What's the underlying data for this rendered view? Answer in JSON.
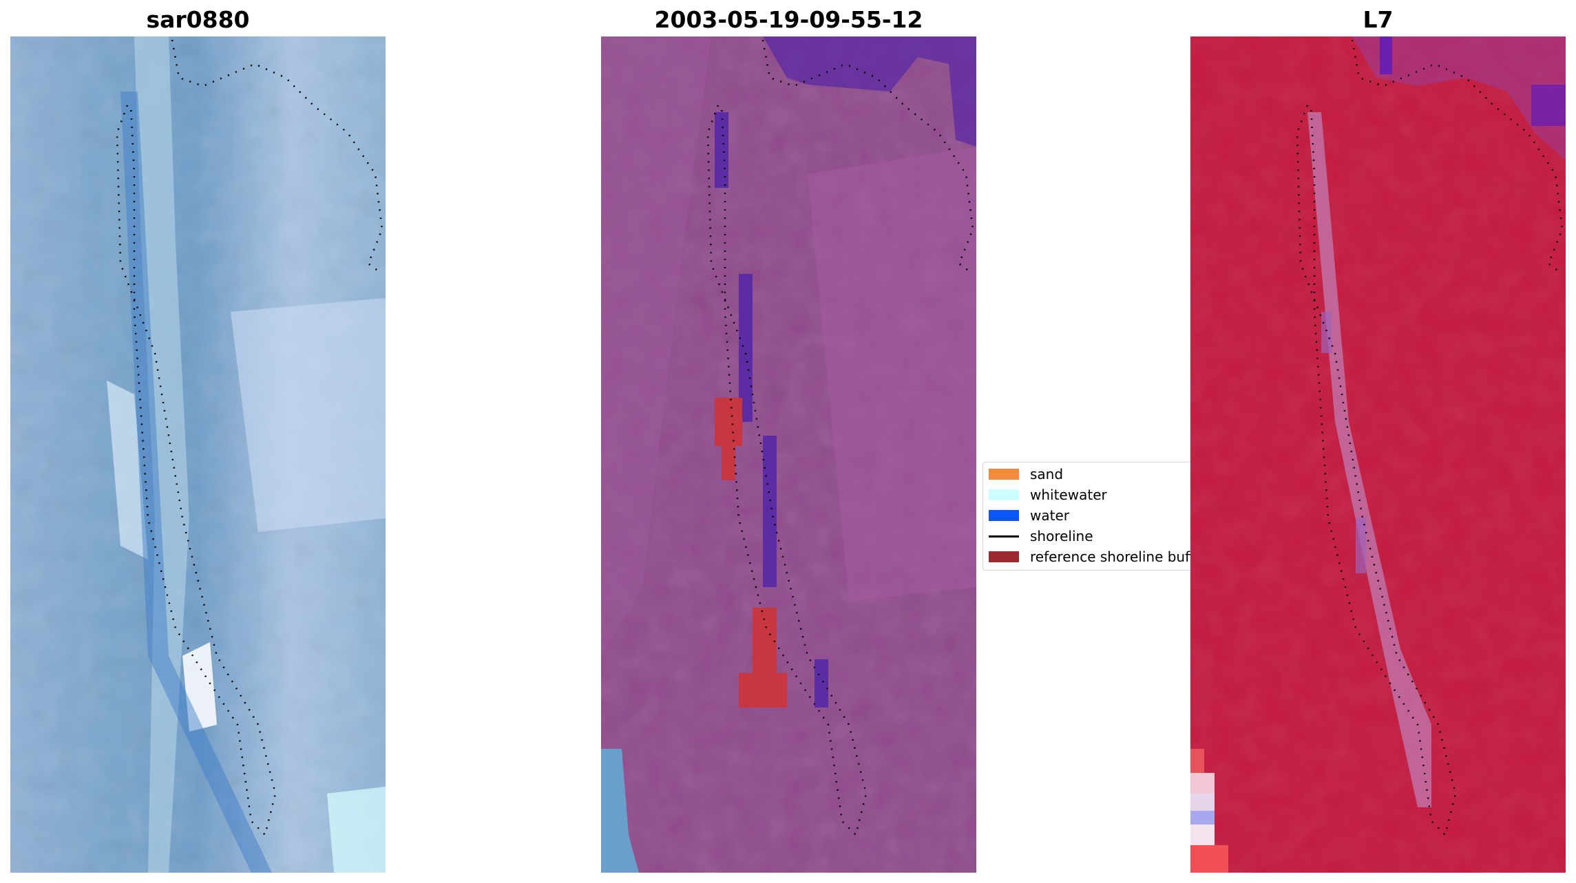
{
  "panels": [
    {
      "title": "sar0880",
      "base_color": "#7da6cc"
    },
    {
      "title": "2003-05-19-09-55-12",
      "base_color": "#8f4d8f"
    },
    {
      "title": "L7",
      "base_color": "#c4163c"
    }
  ],
  "legend": {
    "items": [
      {
        "label": "sand",
        "color": "#f58a3c",
        "kind": "patch"
      },
      {
        "label": "whitewater",
        "color": "#ccffff",
        "kind": "patch"
      },
      {
        "label": "water",
        "color": "#0a57f5",
        "kind": "patch"
      },
      {
        "label": "shoreline",
        "color": "#000000",
        "kind": "line"
      },
      {
        "label": "reference shoreline buffer",
        "color": "#9c2b30",
        "kind": "patch"
      }
    ]
  }
}
